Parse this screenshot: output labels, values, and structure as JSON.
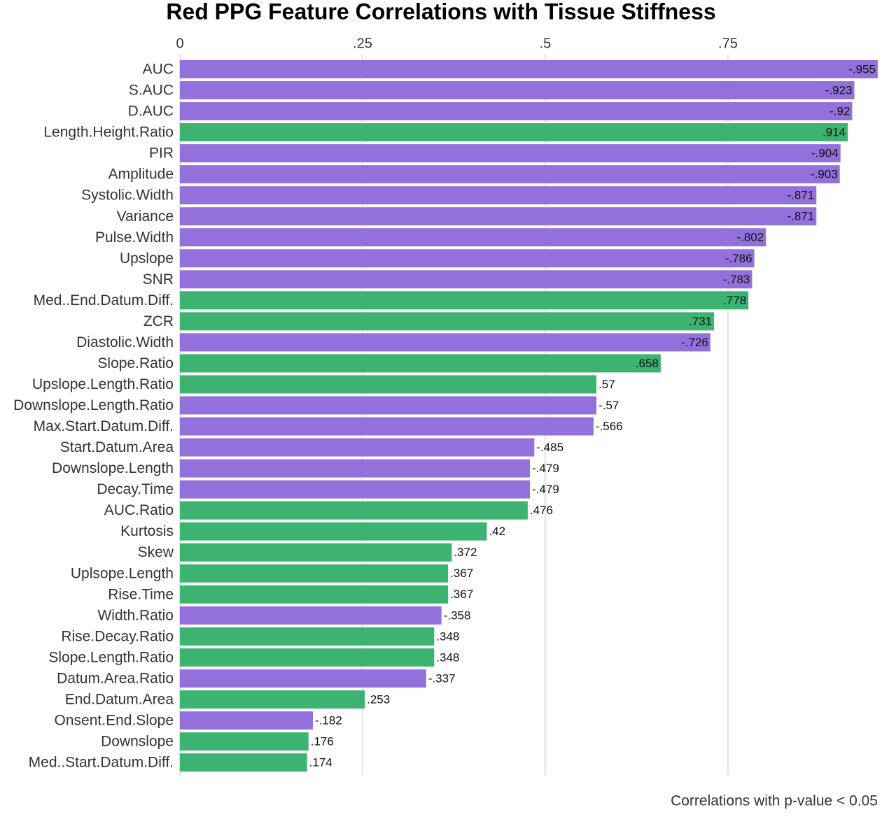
{
  "chart_data": {
    "type": "bar",
    "orientation": "horizontal",
    "title": "Red PPG Feature Correlations with Tissue Stiffness",
    "caption": "Correlations with p-value < 0.05",
    "categories": [
      "AUC",
      "S.AUC",
      "D.AUC",
      "Length.Height.Ratio",
      "PIR",
      "Amplitude",
      "Systolic.Width",
      "Variance",
      "Pulse.Width",
      "Upslope",
      "SNR",
      "Med..End.Datum.Diff.",
      "ZCR",
      "Diastolic.Width",
      "Slope.Ratio",
      "Upslope.Length.Ratio",
      "Downslope.Length.Ratio",
      "Max.Start.Datum.Diff.",
      "Start.Datum.Area",
      "Downslope.Length",
      "Decay.Time",
      "AUC.Ratio",
      "Kurtosis",
      "Skew",
      "Uplsope.Length",
      "Rise.Time",
      "Width.Ratio",
      "Rise.Decay.Ratio",
      "Slope.Length.Ratio",
      "Datum.Area.Ratio",
      "End.Datum.Area",
      "Onsent.End.Slope",
      "Downslope",
      "Med..Start.Datum.Diff."
    ],
    "values": [
      -0.955,
      -0.923,
      -0.92,
      0.914,
      -0.904,
      -0.903,
      -0.871,
      -0.871,
      -0.802,
      -0.786,
      -0.783,
      0.778,
      0.731,
      -0.726,
      0.658,
      0.57,
      -0.57,
      -0.566,
      -0.485,
      -0.479,
      -0.479,
      0.476,
      0.42,
      0.372,
      0.367,
      0.367,
      -0.358,
      0.348,
      0.348,
      -0.337,
      0.253,
      -0.182,
      0.176,
      0.174
    ],
    "value_labels": [
      "-.955",
      "-.923",
      "-.92",
      ".914",
      "-.904",
      "-.903",
      "-.871",
      "-.871",
      "-.802",
      "-.786",
      "-.783",
      ".778",
      ".731",
      "-.726",
      ".658",
      ".57",
      "-.57",
      "-.566",
      "-.485",
      "-.479",
      "-.479",
      ".476",
      ".42",
      ".372",
      ".367",
      ".367",
      "-.358",
      ".348",
      ".348",
      "-.337",
      ".253",
      "-.182",
      ".176",
      ".174"
    ],
    "colors": {
      "negative": "#9370db",
      "positive": "#3cb371"
    },
    "xlim": [
      0,
      0.956
    ],
    "xticks": [
      0,
      {
        "value": 0.25,
        "label": ".25"
      },
      {
        "value": 0.5,
        "label": ".5"
      },
      {
        "value": 0.75,
        "label": ".75"
      }
    ],
    "grid": true
  }
}
